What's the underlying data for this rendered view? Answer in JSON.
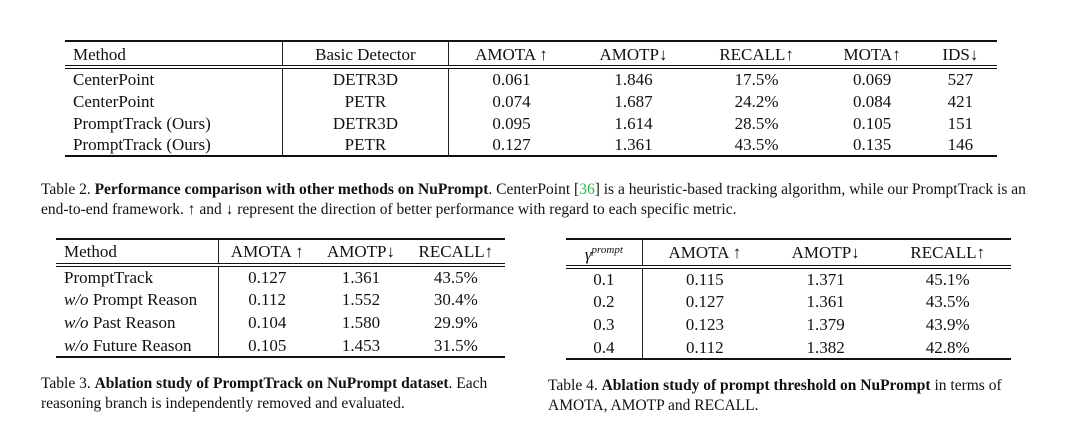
{
  "table2": {
    "headers": [
      "Method",
      "Basic Detector",
      "AMOTA ↑",
      "AMOTP↓",
      "RECALL↑",
      "MOTA↑",
      "IDS↓"
    ],
    "rows": [
      [
        "CenterPoint",
        "DETR3D",
        "0.061",
        "1.846",
        "17.5%",
        "0.069",
        "527"
      ],
      [
        "CenterPoint",
        "PETR",
        "0.074",
        "1.687",
        "24.2%",
        "0.084",
        "421"
      ],
      [
        "PromptTrack (Ours)",
        "DETR3D",
        "0.095",
        "1.614",
        "28.5%",
        "0.105",
        "151"
      ],
      [
        "PromptTrack (Ours)",
        "PETR",
        "0.127",
        "1.361",
        "43.5%",
        "0.135",
        "146"
      ]
    ],
    "caption": {
      "label": "Table 2.",
      "bold": "Performance comparison with other methods on NuPrompt",
      "text_a": ". CenterPoint [",
      "ref": "36",
      "text_b": "] is a heuristic-based tracking algorithm, while our PromptTrack is an end-to-end framework. ↑ and ↓ represent the direction of better performance with regard to each specific metric."
    }
  },
  "table3": {
    "headers": [
      "Method",
      "AMOTA ↑",
      "AMOTP↓",
      "RECALL↑"
    ],
    "rows": [
      {
        "prefix": "",
        "label": "PromptTrack",
        "values": [
          "0.127",
          "1.361",
          "43.5%"
        ]
      },
      {
        "prefix": "w/o",
        "label": " Prompt Reason",
        "values": [
          "0.112",
          "1.552",
          "30.4%"
        ]
      },
      {
        "prefix": "w/o",
        "label": " Past Reason",
        "values": [
          "0.104",
          "1.580",
          "29.9%"
        ]
      },
      {
        "prefix": "w/o",
        "label": " Future Reason",
        "values": [
          "0.105",
          "1.453",
          "31.5%"
        ]
      }
    ],
    "caption": {
      "label": "Table 3.",
      "bold": "Ablation study of PromptTrack on NuPrompt dataset",
      "text": ". Each reasoning branch is independently removed and evaluated."
    }
  },
  "table4": {
    "gamma_symbol": "γ",
    "gamma_sup": "prompt",
    "headers": [
      "AMOTA ↑",
      "AMOTP↓",
      "RECALL↑"
    ],
    "rows": [
      [
        "0.1",
        "0.115",
        "1.371",
        "45.1%"
      ],
      [
        "0.2",
        "0.127",
        "1.361",
        "43.5%"
      ],
      [
        "0.3",
        "0.123",
        "1.379",
        "43.9%"
      ],
      [
        "0.4",
        "0.112",
        "1.382",
        "42.8%"
      ]
    ],
    "caption": {
      "label": "Table 4.",
      "bold": "Ablation study of prompt threshold on NuPrompt",
      "text": " in terms of AMOTA, AMOTP and RECALL."
    }
  }
}
